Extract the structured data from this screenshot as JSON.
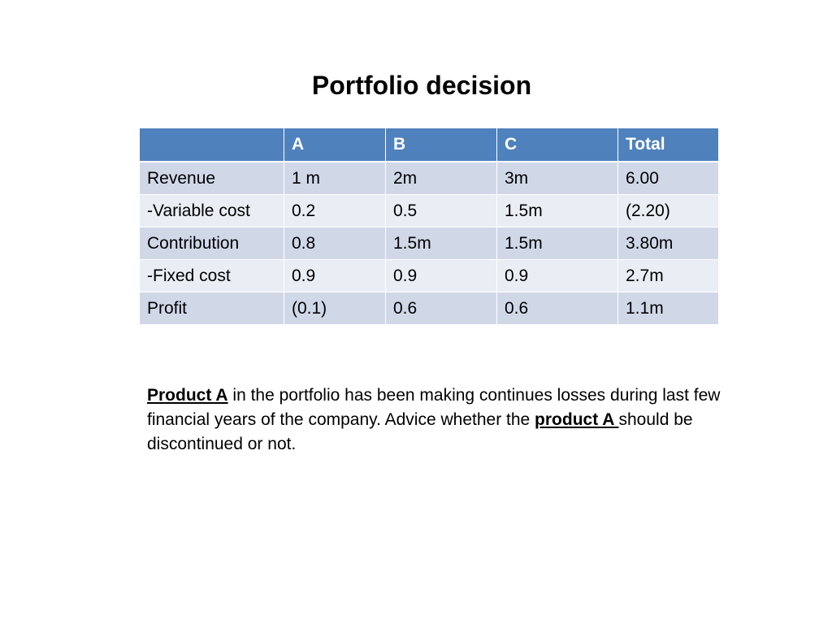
{
  "slide": {
    "title": "Portfolio decision"
  },
  "table": {
    "headers": [
      "",
      "A",
      "B",
      "C",
      "Total"
    ],
    "rows": [
      [
        " Revenue",
        "1 m",
        "2m",
        "3m",
        " 6.00"
      ],
      [
        "-Variable cost",
        "0.2",
        "0.5",
        "1.5m",
        "(2.20)"
      ],
      [
        "Contribution",
        "0.8",
        "1.5m",
        "1.5m",
        " 3.80m"
      ],
      [
        "-Fixed cost",
        "0.9",
        "0.9",
        "0.9",
        " 2.7m"
      ],
      [
        "Profit",
        "(0.1)",
        "0.6",
        "0.6",
        " 1.1m"
      ]
    ]
  },
  "paragraph": {
    "lead": "Product A",
    "middle": " in the portfolio has been making continues losses during last few financial years of the company.  Advice whether the ",
    "product_word": "product A ",
    "tail": "should be discontinued or not."
  },
  "colors": {
    "header_bg": "#4f81bd",
    "row_band_dark": "#d0d8e8",
    "row_band_light": "#e9edf4"
  }
}
